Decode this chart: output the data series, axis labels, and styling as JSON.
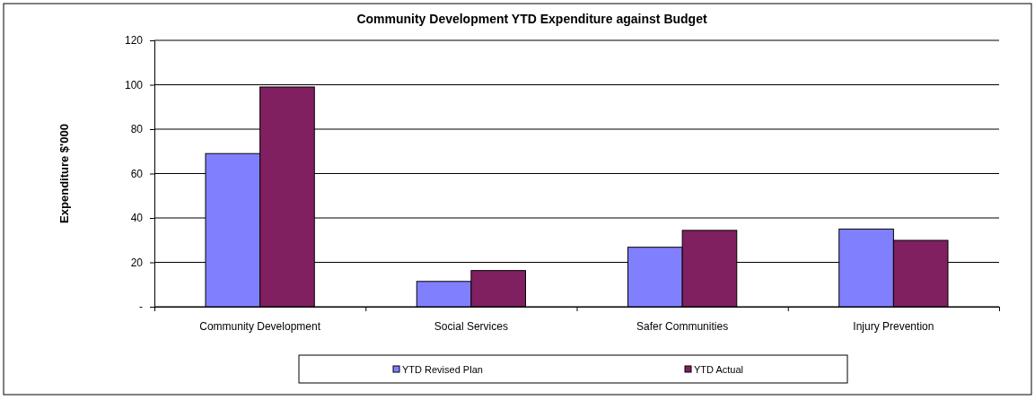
{
  "chart_data": {
    "type": "bar",
    "title": "Community Development YTD Expenditure against Budget",
    "ylabel": "Expenditure $'000",
    "categories": [
      "Community Development",
      "Social Services",
      "Safer Communities",
      "Injury Prevention"
    ],
    "series": [
      {
        "name": "YTD Revised Plan",
        "color": "#8080ff",
        "values": [
          69,
          11.4,
          26.8,
          35
        ]
      },
      {
        "name": "YTD Actual",
        "color": "#802060",
        "values": [
          99,
          16.3,
          34.4,
          29.9
        ]
      }
    ],
    "ylim": [
      0,
      120
    ],
    "yticks": [
      {
        "value": 0,
        "label": "-"
      },
      20,
      40,
      60,
      80,
      100,
      120
    ],
    "grid": "y",
    "legend": "bottom"
  }
}
